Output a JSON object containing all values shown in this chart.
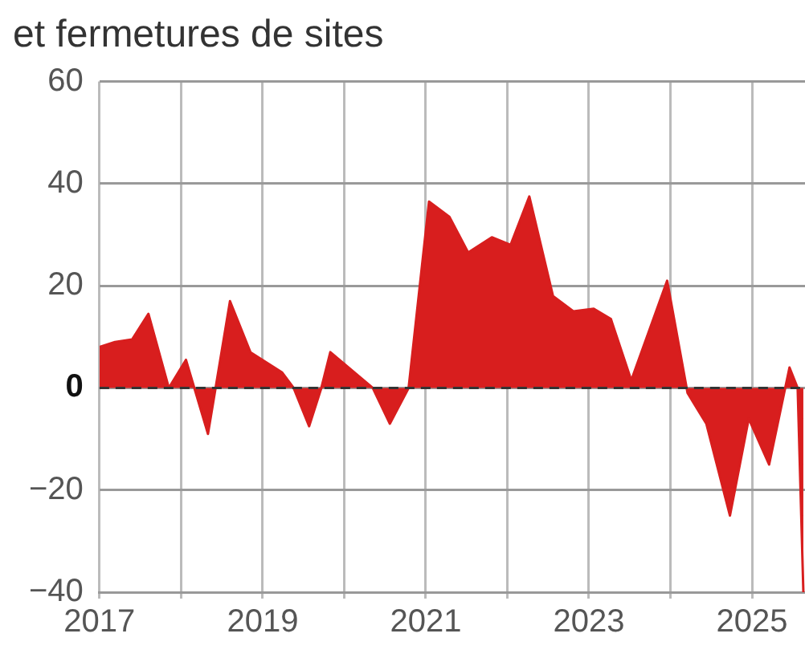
{
  "chart_data": {
    "type": "area",
    "title": "et fermetures de sites",
    "x": [
      2017.0,
      2017.19,
      2017.4,
      2017.6,
      2017.85,
      2018.06,
      2018.33,
      2018.6,
      2018.85,
      2019.24,
      2019.38,
      2019.57,
      2019.72,
      2019.83,
      2020.35,
      2020.56,
      2020.79,
      2021.04,
      2021.29,
      2021.52,
      2021.81,
      2022.04,
      2022.27,
      2022.56,
      2022.81,
      2023.06,
      2023.27,
      2023.52,
      2023.96,
      2024.21,
      2024.44,
      2024.73,
      2024.96,
      2025.21,
      2025.46,
      2025.56,
      2025.63
    ],
    "series": [
      {
        "color": "#d81e1e",
        "values": [
          8,
          9,
          9.5,
          14.5,
          0,
          5.5,
          -9,
          17,
          7,
          3,
          0,
          -7.5,
          0,
          7,
          0,
          -7,
          0,
          36.5,
          33.5,
          26.5,
          29.5,
          28,
          37.5,
          18,
          15,
          15.5,
          13.5,
          1.5,
          21,
          -1,
          -7,
          -25,
          -6,
          -15,
          4,
          0,
          -40
        ]
      }
    ],
    "xlim": [
      2017,
      2025.65
    ],
    "xticks": [
      2017,
      {
        "value": 2018,
        "label": null
      },
      2019,
      {
        "value": 2020,
        "label": null
      },
      2021,
      {
        "value": 2022,
        "label": null
      },
      2023,
      {
        "value": 2024,
        "label": null
      },
      2025
    ],
    "ylim": [
      -40,
      60
    ],
    "yticks": [
      -40,
      -20,
      0,
      20,
      40,
      60
    ],
    "grid": true,
    "legend": false,
    "marker": "none",
    "line_style": "solid",
    "ref_lines": [
      {
        "axis": "y",
        "value": 0,
        "color": "#333333",
        "line_style": "dashed"
      }
    ]
  }
}
